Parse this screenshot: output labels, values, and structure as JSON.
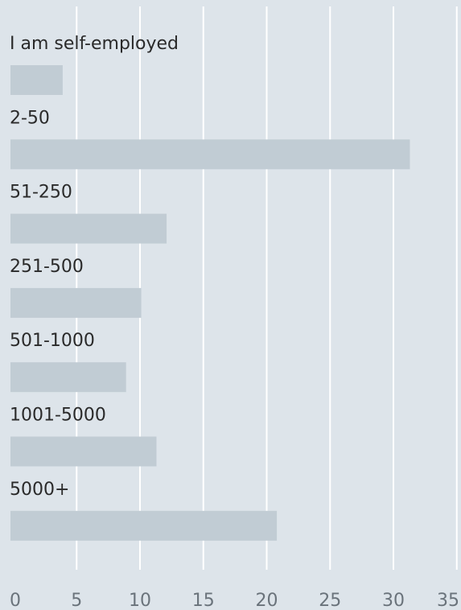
{
  "chart_data": {
    "type": "bar",
    "orientation": "horizontal",
    "categories": [
      "I am self-employed",
      "2-50",
      "51-250",
      "251-500",
      "501-1000",
      "1001-5000",
      "5000+"
    ],
    "values": [
      3.9,
      31.3,
      12.1,
      10.1,
      8.9,
      11.3,
      20.8
    ],
    "xlim": [
      0,
      35
    ],
    "xticks": [
      "0",
      "5",
      "10",
      "15",
      "20",
      "25",
      "30",
      "35"
    ],
    "grid": true,
    "bar_color": "#c1ccd4",
    "grid_color": "#ffffff",
    "background_color": "#dde4ea",
    "text_color": "#2a2a2a",
    "tick_color": "#6a737b"
  }
}
